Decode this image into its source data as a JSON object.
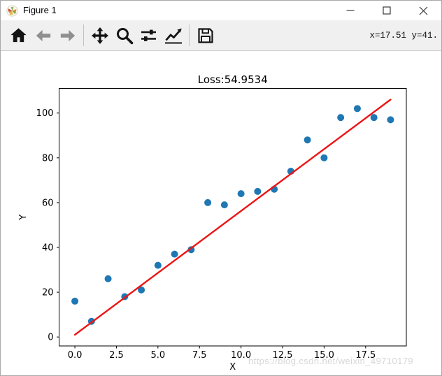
{
  "window": {
    "title": "Figure 1",
    "icon": "matplotlib-logo-icon",
    "controls": [
      "minimize",
      "maximize",
      "close"
    ]
  },
  "toolbar": {
    "buttons": [
      "home",
      "back",
      "forward",
      "pan",
      "zoom",
      "configure-subplots",
      "edit-plot",
      "save"
    ],
    "status": "x=17.51 y=41."
  },
  "watermark": "https://blog.csdn.net/weixin_49710179",
  "chart_data": {
    "type": "scatter",
    "title": "Loss:54.9534",
    "xlabel": "X",
    "ylabel": "Y",
    "xlim": [
      -0.95,
      19.95
    ],
    "ylim": [
      -4,
      111
    ],
    "xticks": [
      0,
      2.5,
      5,
      7.5,
      10,
      12.5,
      15,
      17.5
    ],
    "xtick_labels": [
      "0.0",
      "2.5",
      "5.0",
      "7.5",
      "10.0",
      "12.5",
      "15.0",
      "17.5"
    ],
    "yticks": [
      0,
      20,
      40,
      60,
      80,
      100
    ],
    "ytick_labels": [
      "0",
      "20",
      "40",
      "60",
      "80",
      "100"
    ],
    "grid": false,
    "legend": null,
    "series": [
      {
        "name": "data-points",
        "type": "scatter",
        "color": "#1f77b4",
        "marker_radius": 5,
        "x": [
          0,
          1,
          2,
          3,
          4,
          5,
          6,
          7,
          8,
          9,
          10,
          11,
          12,
          13,
          14,
          15,
          16,
          17,
          18,
          19
        ],
        "y": [
          16,
          7,
          26,
          18,
          21,
          32,
          37,
          39,
          60,
          59,
          64,
          65,
          66,
          74,
          88,
          80,
          98,
          102,
          98,
          97
        ]
      },
      {
        "name": "fit-line",
        "type": "line",
        "color": "#ed1515",
        "width": 2.4,
        "x": [
          0,
          19
        ],
        "y": [
          1,
          106
        ]
      }
    ]
  }
}
